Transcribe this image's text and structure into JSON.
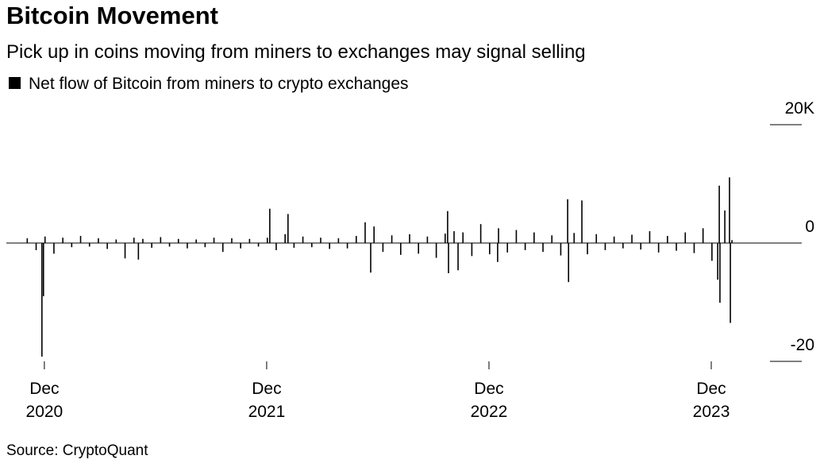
{
  "chart_data": {
    "type": "bar",
    "title": "Bitcoin Movement",
    "subtitle": "Pick up in coins moving from miners to exchanges may signal selling",
    "source": "Source: CryptoQuant",
    "series": [
      {
        "name": "Net flow of Bitcoin from miners to crypto exchanges",
        "color": "#000000",
        "x": [
          2020.84,
          2020.88,
          2020.906,
          2020.913,
          2020.92,
          2020.96,
          2021.0,
          2021.04,
          2021.08,
          2021.12,
          2021.16,
          2021.2,
          2021.24,
          2021.28,
          2021.32,
          2021.34,
          2021.36,
          2021.4,
          2021.44,
          2021.48,
          2021.52,
          2021.56,
          2021.6,
          2021.64,
          2021.68,
          2021.72,
          2021.76,
          2021.8,
          2021.84,
          2021.88,
          2021.92,
          2021.931,
          2021.96,
          2022.0,
          2022.013,
          2022.04,
          2022.08,
          2022.12,
          2022.16,
          2022.2,
          2022.24,
          2022.28,
          2022.32,
          2022.36,
          2022.385,
          2022.4,
          2022.44,
          2022.48,
          2022.52,
          2022.56,
          2022.6,
          2022.64,
          2022.68,
          2022.72,
          2022.731,
          2022.735,
          2022.76,
          2022.778,
          2022.8,
          2022.84,
          2022.88,
          2022.92,
          2022.956,
          2022.96,
          2023.0,
          2023.04,
          2023.08,
          2023.12,
          2023.16,
          2023.2,
          2023.24,
          2023.271,
          2023.275,
          2023.3,
          2023.335,
          2023.36,
          2023.4,
          2023.44,
          2023.48,
          2023.52,
          2023.56,
          2023.6,
          2023.64,
          2023.68,
          2023.72,
          2023.76,
          2023.8,
          2023.84,
          2023.88,
          2023.92,
          2023.946,
          2023.953,
          2023.956,
          2023.978,
          2023.999,
          2024.003,
          2024.01
        ],
        "values": [
          800,
          -1200,
          -19200,
          -9000,
          1100,
          -1800,
          900,
          -700,
          1200,
          -600,
          800,
          -1000,
          600,
          -2600,
          900,
          -2800,
          700,
          -800,
          1000,
          -600,
          700,
          -900,
          600,
          -700,
          900,
          -1500,
          800,
          -900,
          700,
          -600,
          900,
          5800,
          -1200,
          1500,
          4900,
          -800,
          1100,
          -700,
          900,
          -1000,
          800,
          -900,
          1200,
          3500,
          -5000,
          2800,
          -1500,
          1300,
          -2000,
          1500,
          -1800,
          1100,
          -2500,
          1600,
          5400,
          -5100,
          2000,
          -4600,
          1800,
          -2200,
          3200,
          -1900,
          -3200,
          2500,
          -1600,
          2200,
          -1200,
          1800,
          -1500,
          1300,
          -2100,
          7400,
          -6600,
          1700,
          7200,
          -1900,
          1500,
          -1200,
          1100,
          -900,
          1400,
          -1100,
          2000,
          -1600,
          1200,
          -1300,
          1800,
          -1700,
          2500,
          -3000,
          -6200,
          9700,
          -10100,
          5500,
          11100,
          -13500,
          500
        ]
      }
    ],
    "xlim": [
      2020.746,
      2024.324
    ],
    "xticks": [
      {
        "value": 2020.917,
        "label": "Dec 2020"
      },
      {
        "value": 2021.917,
        "label": "Dec 2021"
      },
      {
        "value": 2022.917,
        "label": "Dec 2022"
      },
      {
        "value": 2023.917,
        "label": "Dec 2023"
      }
    ],
    "ylim": [
      -20000,
      20000
    ],
    "yticks": [
      {
        "value": -20000,
        "label": "-20"
      },
      0,
      {
        "value": 20000,
        "label": "20K"
      }
    ]
  }
}
